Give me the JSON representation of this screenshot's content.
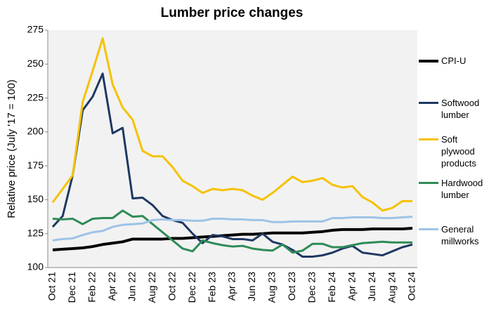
{
  "chart_data": {
    "type": "line",
    "title": "Lumber price changes",
    "y_label": "Relative price (July '17 = 100)",
    "categories": [
      "Oct 21",
      null,
      "Dec 21",
      null,
      "Feb 22",
      null,
      "Apr 22",
      null,
      "Jun 22",
      null,
      "Aug 22",
      null,
      "Oct 22",
      null,
      "Dec 22",
      null,
      "Feb 23",
      null,
      "Apr 23",
      null,
      "Jun 23",
      null,
      "Aug 23",
      null,
      "Oct 23",
      null,
      "Dec 23",
      null,
      "Feb 24",
      null,
      "Apr 24",
      null,
      "Jun 24",
      null,
      "Aug 24",
      null,
      "Oct 24"
    ],
    "ylim": [
      100,
      275
    ],
    "yticks": [
      100,
      125,
      150,
      175,
      200,
      225,
      250,
      275
    ],
    "grid": false,
    "legend": "right",
    "series": [
      {
        "name": "CPI-U",
        "color": "#000000",
        "values": [
          113,
          113.5,
          114,
          114.5,
          115.5,
          117,
          118,
          119,
          121,
          121,
          121,
          121,
          121.5,
          121.5,
          122,
          122.5,
          123,
          123.5,
          124,
          124.5,
          124.5,
          125,
          125.5,
          125.5,
          125.5,
          125.5,
          126,
          126.5,
          127.5,
          128,
          128,
          128,
          128.5,
          128.5,
          128.5,
          128.5,
          129
        ]
      },
      {
        "name": "Softwood lumber",
        "color": "#1f3864",
        "values": [
          130,
          138,
          168,
          216,
          226,
          243,
          199,
          203,
          151,
          151.5,
          146,
          138,
          135,
          133,
          125,
          118,
          124,
          123,
          121,
          121,
          120,
          125,
          119,
          117,
          113,
          108,
          108,
          109,
          111,
          114,
          116,
          111,
          110,
          109,
          112,
          115,
          117
        ]
      },
      {
        "name": "Soft plywood products",
        "color": "#f5c200",
        "values": [
          148,
          158,
          168,
          222,
          245,
          269,
          235,
          218,
          209,
          186,
          182,
          182,
          174,
          164,
          160,
          155,
          158,
          157,
          158,
          157,
          153,
          150,
          155,
          161,
          167,
          163,
          164,
          166,
          161,
          159,
          160,
          152,
          148,
          142,
          144,
          149,
          149
        ]
      },
      {
        "name": "Hardwood lumber",
        "color": "#2e8b57",
        "values": [
          136,
          135.5,
          136,
          132,
          136,
          136.5,
          136.5,
          142,
          137.5,
          138,
          132,
          126,
          120,
          114,
          112,
          120,
          118,
          116.5,
          115.5,
          116,
          114,
          113,
          112.5,
          117,
          111,
          112.5,
          117.5,
          117.5,
          115,
          115,
          116.5,
          118,
          118.5,
          119,
          118.5,
          118.5,
          118.5
        ]
      },
      {
        "name": "General millworks",
        "color": "#9dc3e6",
        "values": [
          120,
          121,
          121.5,
          124,
          126,
          127,
          130,
          131.5,
          132,
          132.5,
          135,
          135.5,
          135,
          135,
          134.5,
          134.5,
          136,
          136,
          135.5,
          135.5,
          135,
          135,
          133.5,
          133.5,
          134,
          134,
          134,
          134,
          136.5,
          136.5,
          137,
          137,
          137,
          136.5,
          136.5,
          137,
          137.5
        ]
      }
    ]
  }
}
